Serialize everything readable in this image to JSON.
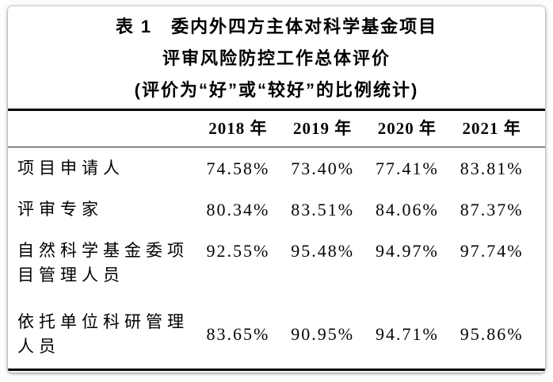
{
  "table": {
    "title_line1": "表 1　委内外四方主体对科学基金项目",
    "title_line2": "评审风险防控工作总体评价",
    "title_line3": "(评价为“好”或“较好”的比例统计)",
    "columns": [
      "2018 年",
      "2019 年",
      "2020 年",
      "2021 年"
    ],
    "rows": [
      {
        "label": "项目申请人",
        "values": [
          "74.58%",
          "73.40%",
          "77.41%",
          "83.81%"
        ]
      },
      {
        "label": "评审专家",
        "values": [
          "80.34%",
          "83.51%",
          "84.06%",
          "87.37%"
        ]
      },
      {
        "label": "自然科学基金委项目管理人员",
        "values": [
          "92.55%",
          "95.48%",
          "94.97%",
          "97.74%"
        ]
      },
      {
        "label": "依托单位科研管理人员",
        "values": [
          "83.65%",
          "90.95%",
          "94.71%",
          "95.86%"
        ]
      }
    ],
    "colors": {
      "rule": "#000000",
      "text": "#000000",
      "card_background": "#ffffff"
    }
  }
}
